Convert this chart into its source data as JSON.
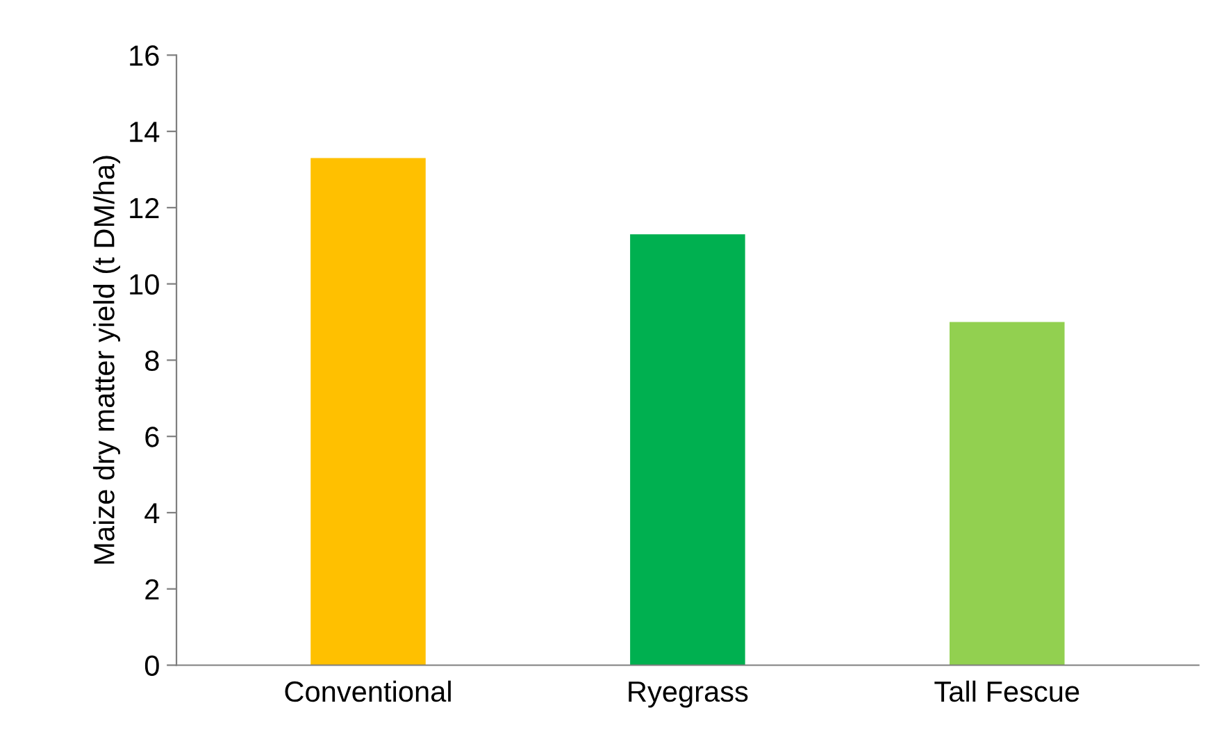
{
  "chart_data": {
    "type": "bar",
    "ylabel": "Maize dry matter yield (t DM/ha)",
    "categories": [
      "Conventional",
      "Ryegrass",
      "Tall Fescue"
    ],
    "values": [
      13.3,
      11.3,
      9.0
    ],
    "colors": [
      "#ffc000",
      "#00b050",
      "#92d050"
    ],
    "ylim": [
      0,
      16
    ],
    "yticks": [
      0,
      2,
      4,
      6,
      8,
      10,
      12,
      14,
      16
    ],
    "grid": false
  }
}
